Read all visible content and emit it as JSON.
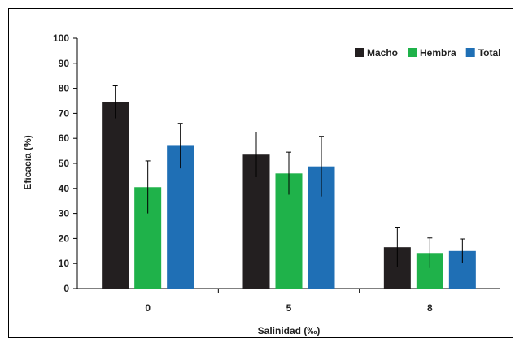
{
  "chart_data": {
    "type": "bar",
    "title": "",
    "xlabel": "Salinidad (‰)",
    "ylabel": "Eficacia (%)",
    "ylim": [
      0,
      100
    ],
    "yticks": [
      0,
      10,
      20,
      30,
      40,
      50,
      60,
      70,
      80,
      90,
      100
    ],
    "categories": [
      "0",
      "5",
      "8"
    ],
    "series": [
      {
        "name": "Macho",
        "color": "#231f20",
        "values": [
          74.5,
          53.5,
          16.5
        ],
        "errors": [
          6.5,
          9.0,
          8.0
        ]
      },
      {
        "name": "Hembra",
        "color": "#1fb24a",
        "values": [
          40.5,
          46.0,
          14.2
        ],
        "errors": [
          10.5,
          8.5,
          6.0
        ]
      },
      {
        "name": "Total",
        "color": "#1f6fb5",
        "values": [
          57.0,
          48.8,
          15.0
        ],
        "errors": [
          9.0,
          12.0,
          4.8
        ]
      }
    ],
    "grid": false,
    "legend_position": "top-right"
  }
}
